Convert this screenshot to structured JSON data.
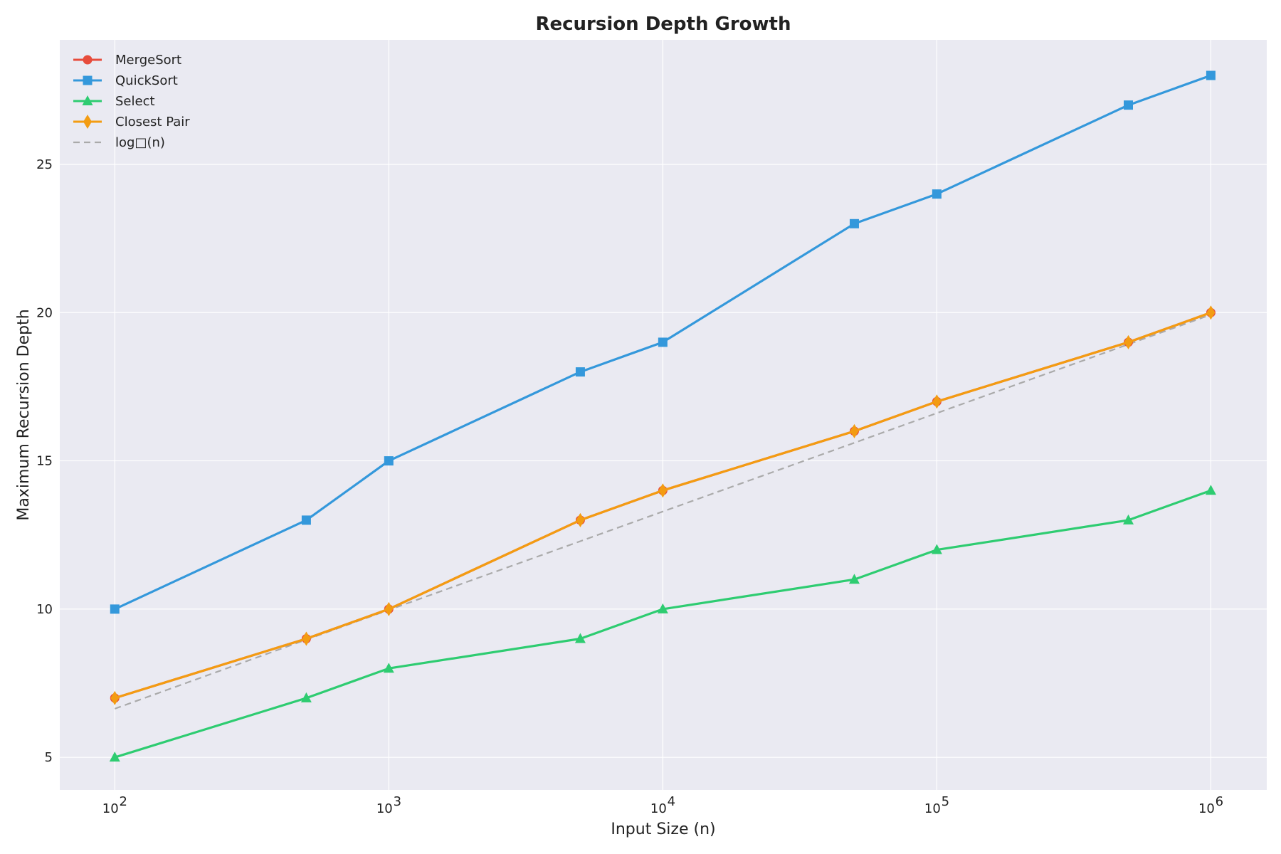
{
  "chart_data": {
    "type": "line",
    "title": "Recursion Depth Growth",
    "xlabel": "Input Size (n)",
    "ylabel": "Maximum Recursion Depth",
    "xscale": "log",
    "xlim": [
      63,
      1600000
    ],
    "ylim": [
      3.9,
      29.2
    ],
    "grid": true,
    "legend_position": "top-left",
    "x_ticks": [
      100,
      1000,
      10000,
      100000,
      1000000
    ],
    "x_tick_labels": [
      {
        "base": "10",
        "exp": "2"
      },
      {
        "base": "10",
        "exp": "3"
      },
      {
        "base": "10",
        "exp": "4"
      },
      {
        "base": "10",
        "exp": "5"
      },
      {
        "base": "10",
        "exp": "6"
      }
    ],
    "y_ticks": [
      5,
      10,
      15,
      20,
      25
    ],
    "y_tick_labels": [
      "5",
      "10",
      "15",
      "20",
      "25"
    ],
    "x": [
      100,
      500,
      1000,
      5000,
      10000,
      50000,
      100000,
      500000,
      1000000
    ],
    "series": [
      {
        "name": "MergeSort",
        "color": "#e74c3c",
        "marker": "circle",
        "line": "solid",
        "values": [
          7,
          9,
          10,
          13,
          14,
          16,
          17,
          19,
          20
        ]
      },
      {
        "name": "QuickSort",
        "color": "#3498db",
        "marker": "square",
        "line": "solid",
        "values": [
          10,
          13,
          15,
          18,
          19,
          23,
          24,
          27,
          28
        ]
      },
      {
        "name": "Select",
        "color": "#2ecc71",
        "marker": "triangle",
        "line": "solid",
        "values": [
          5,
          7,
          8,
          9,
          10,
          11,
          12,
          13,
          14
        ]
      },
      {
        "name": "Closest Pair",
        "color": "#f39c12",
        "marker": "diamond",
        "line": "solid",
        "values": [
          7,
          9,
          10,
          13,
          14,
          16,
          17,
          19,
          20
        ]
      },
      {
        "name": "log□(n)",
        "color": "#aaaaaa",
        "marker": "none",
        "line": "dashed",
        "values": [
          6.64,
          8.97,
          9.97,
          12.29,
          13.29,
          15.61,
          16.61,
          18.93,
          19.93
        ]
      }
    ]
  }
}
